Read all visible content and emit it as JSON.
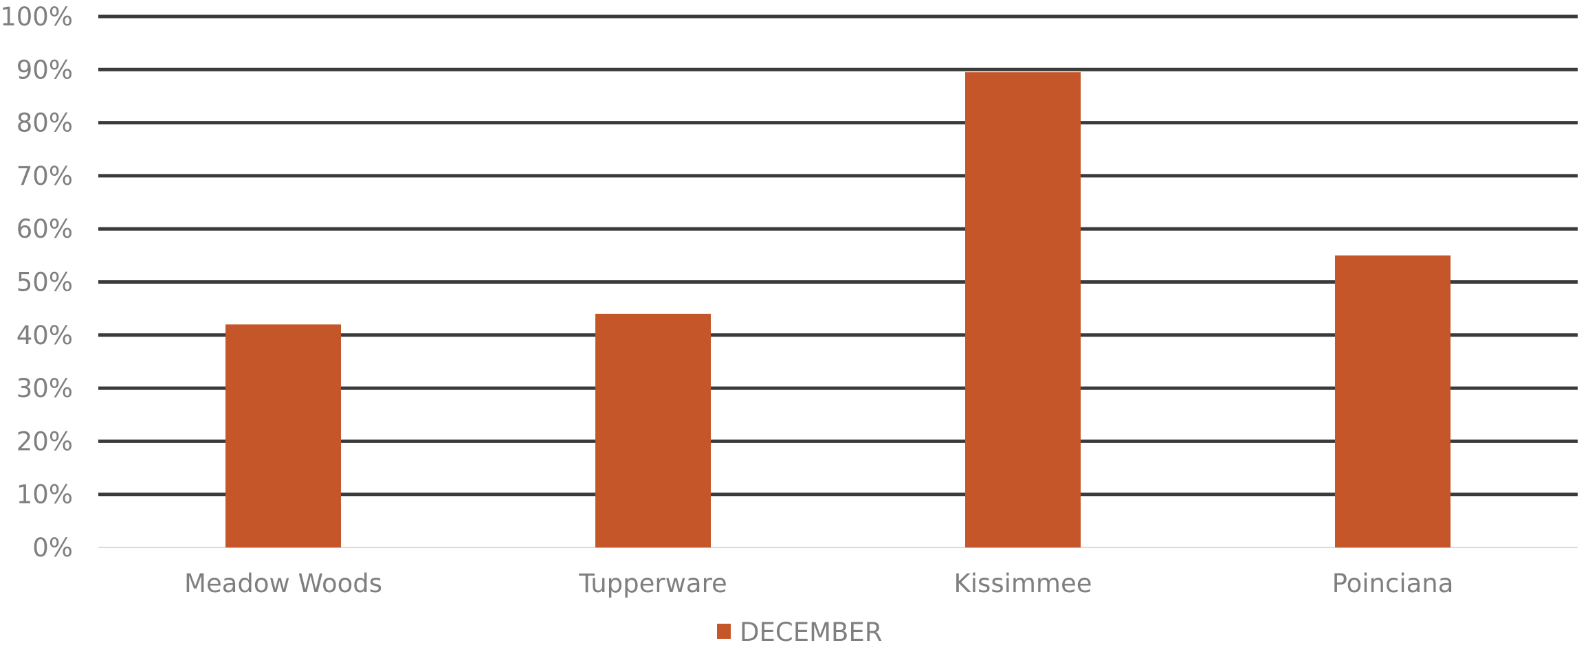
{
  "chart_data": {
    "type": "bar",
    "categories": [
      "Meadow Woods",
      "Tupperware",
      "Kissimmee",
      "Poinciana"
    ],
    "series": [
      {
        "name": "DECEMBER",
        "values": [
          42,
          44,
          89.5,
          55
        ],
        "color": "#c4562a"
      }
    ],
    "ylim": [
      0,
      100
    ],
    "y_ticks": [
      "0%",
      "10%",
      "20%",
      "30%",
      "40%",
      "50%",
      "60%",
      "70%",
      "80%",
      "90%",
      "100%"
    ],
    "y_unit": "percent",
    "grid": true,
    "gridline_color": "#3a3a3a",
    "baseline_color": "#d9d9d9",
    "legend_position": "bottom"
  }
}
